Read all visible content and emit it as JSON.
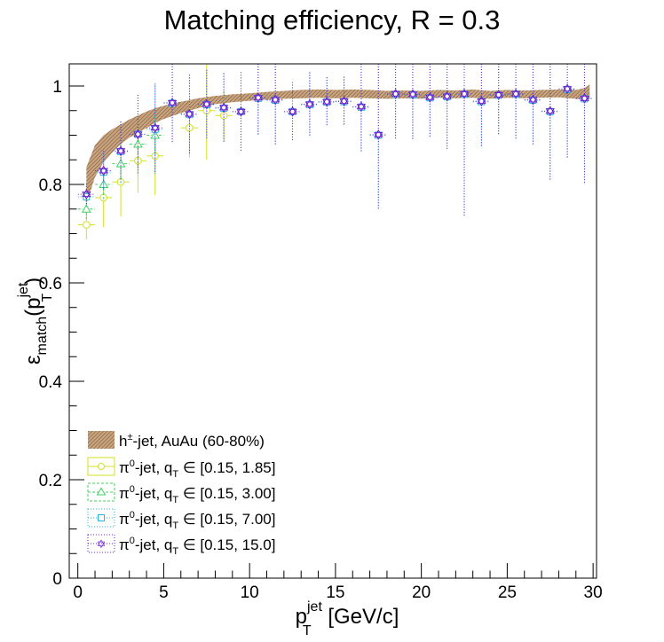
{
  "chart_data": {
    "type": "scatter",
    "title": "Matching efficiency, R = 0.3",
    "xlabel": {
      "base": "p",
      "sup": "jet",
      "sub": "T",
      "unit": " [GeV/c]"
    },
    "ylabel": {
      "base": "ε",
      "sub": "match",
      "open": "(p",
      "sup": "jet",
      "sub2": "T",
      "close": ")"
    },
    "xlim": [
      -0.5,
      30.2
    ],
    "ylim": [
      0,
      1.045
    ],
    "x_ticks": [
      0,
      5,
      10,
      15,
      20,
      25,
      30
    ],
    "x_tick_labels": [
      "0",
      "5",
      "10",
      "15",
      "20",
      "25",
      "30"
    ],
    "y_ticks": [
      0,
      0.2,
      0.4,
      0.6,
      0.8,
      1
    ],
    "y_tick_labels": [
      "0",
      "0.2",
      "0.4",
      "0.6",
      "0.8",
      "1"
    ],
    "grid": false,
    "legend_position": "bottom-left",
    "legend": [
      {
        "pre": "h",
        "sup": "±",
        "post": "-jet, AuAu (60-80%)"
      },
      {
        "pre": "π",
        "sup": "0",
        "mid": "-jet, q",
        "sub": "T",
        "post": " ∈ [0.15, 1.85]"
      },
      {
        "pre": "π",
        "sup": "0",
        "mid": "-jet, q",
        "sub": "T",
        "post": " ∈ [0.15, 3.00]"
      },
      {
        "pre": "π",
        "sup": "0",
        "mid": "-jet, q",
        "sub": "T",
        "post": " ∈ [0.15, 7.00]"
      },
      {
        "pre": "π",
        "sup": "0",
        "mid": "-jet, q",
        "sub": "T",
        "post": " ∈ [0.15, 15.0]"
      }
    ],
    "band": {
      "name": "h±-jet, AuAu (60-80%)",
      "color": "#b08a6a",
      "x": [
        0.5,
        1.0,
        1.5,
        2.0,
        2.5,
        3.0,
        3.5,
        4.0,
        4.5,
        5.0,
        6.0,
        7.0,
        8.0,
        9.0,
        10.0,
        11.0,
        12.0,
        13.0,
        14.0,
        15.0,
        16.0,
        17.0,
        18.0,
        19.0,
        20.0,
        21.0,
        22.0,
        23.0,
        24.0,
        25.0,
        26.0,
        27.0,
        28.0,
        29.0,
        29.5,
        29.8
      ],
      "upper": [
        0.835,
        0.88,
        0.9,
        0.912,
        0.922,
        0.932,
        0.94,
        0.948,
        0.955,
        0.96,
        0.968,
        0.975,
        0.98,
        0.983,
        0.985,
        0.988,
        0.99,
        0.992,
        0.993,
        0.992,
        0.993,
        0.992,
        0.99,
        0.991,
        0.99,
        0.992,
        0.991,
        0.993,
        0.99,
        0.992,
        0.991,
        0.992,
        0.993,
        0.992,
        0.996,
        1.003
      ],
      "lower": [
        0.76,
        0.815,
        0.845,
        0.865,
        0.882,
        0.895,
        0.905,
        0.915,
        0.925,
        0.933,
        0.945,
        0.955,
        0.963,
        0.967,
        0.97,
        0.972,
        0.974,
        0.975,
        0.976,
        0.975,
        0.976,
        0.975,
        0.974,
        0.975,
        0.974,
        0.976,
        0.975,
        0.976,
        0.974,
        0.976,
        0.975,
        0.976,
        0.977,
        0.974,
        0.972,
        0.973
      ]
    },
    "series": [
      {
        "name": "π0-jet, qT ∈ [0.15, 1.85]",
        "color": "#d4e020",
        "marker": "circle",
        "x": [
          0.5,
          1.5,
          2.5,
          3.5,
          4.5,
          6.5,
          7.5,
          8.5
        ],
        "y": [
          0.718,
          0.773,
          0.805,
          0.848,
          0.858,
          0.915,
          0.95,
          0.94
        ],
        "err": [
          0.03,
          0.06,
          0.07,
          0.065,
          0.08,
          0.06,
          0.1,
          0.05
        ]
      },
      {
        "name": "π0-jet, qT ∈ [0.15, 3.00]",
        "color": "#40d060",
        "marker": "triangle",
        "x": [
          0.5,
          1.5,
          2.5,
          3.5,
          4.5
        ],
        "y": [
          0.75,
          0.8,
          0.842,
          0.882,
          0.9
        ],
        "err": [
          0.02,
          0.03,
          0.04,
          0.05,
          0.04
        ]
      },
      {
        "name": "π0-jet, qT ∈ [0.15, 7.00]",
        "color": "#20b8d8",
        "marker": "square",
        "x": [
          0.5,
          1.5,
          2.5,
          3.5,
          4.5,
          5.5,
          6.5,
          7.5,
          8.5,
          9.5,
          10.5,
          11.5,
          12.5,
          13.5,
          14.5,
          15.5,
          16.5,
          17.5,
          18.5,
          19.5,
          20.5,
          21.5,
          22.5,
          23.5,
          24.5,
          25.5,
          26.5,
          27.5,
          28.5,
          29.5
        ],
        "y": [
          0.775,
          0.825,
          0.867,
          0.902,
          0.912,
          0.965,
          0.942,
          0.962,
          0.955,
          0.948,
          0.975,
          0.971,
          0.948,
          0.962,
          0.967,
          0.968,
          0.957,
          0.9,
          0.983,
          0.982,
          0.976,
          0.978,
          0.983,
          0.968,
          0.981,
          0.983,
          0.971,
          0.948,
          0.993,
          0.974
        ],
        "err": [
          0.022,
          0.04,
          0.06,
          0.08,
          0.09,
          0.08,
          0.08,
          0.07,
          0.07,
          0.08,
          0.075,
          0.09,
          0.06,
          0.065,
          0.05,
          0.05,
          0.09,
          0.15,
          0.09,
          0.09,
          0.08,
          0.11,
          0.25,
          0.09,
          0.08,
          0.09,
          0.09,
          0.14,
          0.14,
          0.175
        ]
      },
      {
        "name": "π0-jet, qT ∈ [0.15, 15.0]",
        "color": "#6a20d0",
        "marker": "star",
        "x": [
          0.5,
          1.5,
          2.5,
          3.5,
          4.5,
          5.5,
          6.5,
          7.5,
          8.5,
          9.5,
          10.5,
          11.5,
          12.5,
          13.5,
          14.5,
          15.5,
          16.5,
          17.5,
          18.5,
          19.5,
          20.5,
          21.5,
          22.5,
          23.5,
          24.5,
          25.5,
          26.5,
          27.5,
          28.5,
          29.5
        ],
        "y": [
          0.78,
          0.828,
          0.868,
          0.902,
          0.915,
          0.966,
          0.943,
          0.963,
          0.956,
          0.948,
          0.976,
          0.972,
          0.948,
          0.963,
          0.968,
          0.969,
          0.958,
          0.901,
          0.984,
          0.983,
          0.977,
          0.979,
          0.984,
          0.969,
          0.982,
          0.984,
          0.972,
          0.949,
          0.994,
          0.975
        ],
        "err": [
          0.022,
          0.04,
          0.06,
          0.08,
          0.09,
          0.08,
          0.08,
          0.07,
          0.07,
          0.08,
          0.075,
          0.09,
          0.06,
          0.065,
          0.05,
          0.05,
          0.09,
          0.15,
          0.09,
          0.09,
          0.08,
          0.11,
          0.25,
          0.09,
          0.08,
          0.09,
          0.09,
          0.14,
          0.14,
          0.175
        ]
      }
    ]
  }
}
